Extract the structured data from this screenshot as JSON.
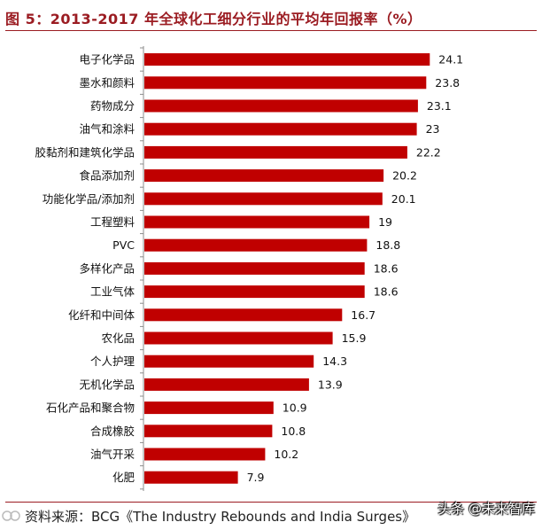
{
  "header": {
    "title": "图 5：2013-2017 年全球化工细分行业的平均年回报率（%）"
  },
  "chart_data": {
    "type": "bar",
    "orientation": "horizontal",
    "title": "图 5：2013-2017 年全球化工细分行业的平均年回报率（%）",
    "xlabel": "",
    "ylabel": "",
    "unit": "%",
    "xlim": [
      0,
      25.5
    ],
    "grid": false,
    "legend": "none",
    "bar_color": "#c00000",
    "categories": [
      "电子化学品",
      "墨水和颜料",
      "药物成分",
      "油气和涂料",
      "胶黏剂和建筑化学品",
      "食品添加剂",
      "功能化学品/添加剂",
      "工程塑料",
      "PVC",
      "多样化产品",
      "工业气体",
      "化纤和中间体",
      "农化品",
      "个人护理",
      "无机化学品",
      "石化产品和聚合物",
      "合成橡胶",
      "油气开采",
      "化肥"
    ],
    "values": [
      24.1,
      23.8,
      23.1,
      23,
      22.2,
      20.2,
      20.1,
      19,
      18.8,
      18.6,
      18.6,
      16.7,
      15.9,
      14.3,
      13.9,
      10.9,
      10.8,
      10.2,
      7.9
    ],
    "value_labels": [
      "24.1",
      "23.8",
      "23.1",
      "23",
      "22.2",
      "20.2",
      "20.1",
      "19",
      "18.8",
      "18.6",
      "18.6",
      "16.7",
      "15.9",
      "14.3",
      "13.9",
      "10.9",
      "10.8",
      "10.2",
      "7.9"
    ]
  },
  "footer": {
    "source": "资料来源：BCG《The Industry Rebounds and India Surges》",
    "watermark": "头条 @未来智库"
  },
  "colors": {
    "title": "#9b1c22",
    "bar": "#c00000"
  }
}
